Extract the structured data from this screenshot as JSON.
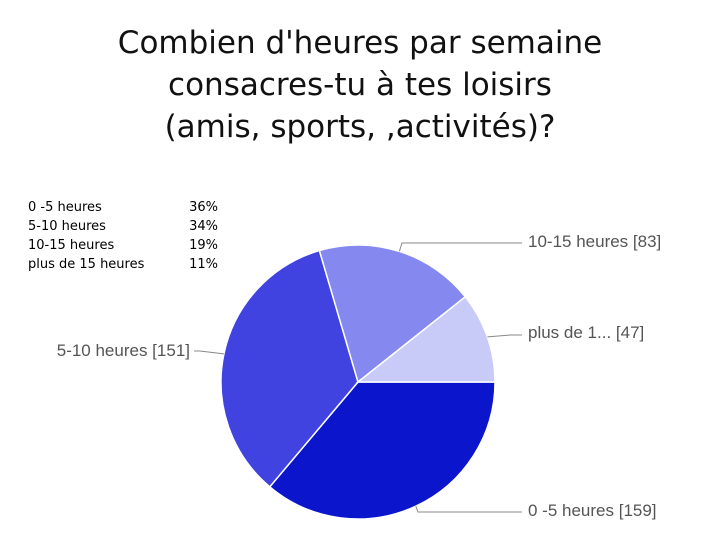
{
  "title": {
    "line1": "Combien d'heures par semaine",
    "line2": "consacres-tu à tes loisirs",
    "line3": "(amis, sports, ,activités)?"
  },
  "legend_table": [
    {
      "label": "0 -5 heures",
      "percent": "36%"
    },
    {
      "label": "5-10 heures",
      "percent": "34%"
    },
    {
      "label": "10-15 heures",
      "percent": "19%"
    },
    {
      "label": "plus de 15 heures",
      "percent": "11%"
    }
  ],
  "chart_data": {
    "type": "pie",
    "slices": [
      {
        "label": "0 -5 heures",
        "callout": "0 -5 heures [159]",
        "value": 159,
        "color": "#0b16cc"
      },
      {
        "label": "5-10 heures",
        "callout": "5-10 heures [151]",
        "value": 151,
        "color": "#4043e0"
      },
      {
        "label": "10-15 heures",
        "callout": "10-15 heures [83]",
        "value": 83,
        "color": "#8488ef"
      },
      {
        "label": "plus de 15 heures",
        "callout": "plus de 1... [47]",
        "value": 47,
        "color": "#c8cbf8"
      }
    ]
  }
}
